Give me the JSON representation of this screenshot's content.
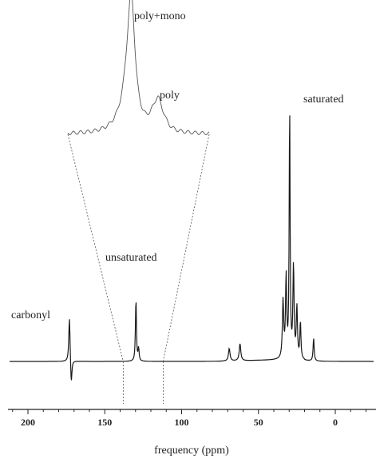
{
  "chart_data": {
    "type": "line",
    "xlabel": "frequency (ppm)",
    "x_ticks": [
      200,
      150,
      100,
      50,
      0
    ],
    "xlim": [
      210,
      -20
    ],
    "x_reversed": true,
    "grid": false,
    "annotations": {
      "carbonyl": "carbonyl",
      "unsaturated": "unsaturated",
      "saturated": "saturated",
      "poly_mono": "poly+mono",
      "poly": "poly"
    },
    "inset_range_ppm": [
      138,
      112
    ],
    "main_peaks": [
      {
        "ppm": 173.0,
        "height": 0.8,
        "width": 0.5
      },
      {
        "ppm": 171.8,
        "height": -0.45,
        "width": 0.5
      },
      {
        "ppm": 130.0,
        "height": 0.14,
        "width": 0.4
      },
      {
        "ppm": 129.7,
        "height": 1.0,
        "width": 0.35
      },
      {
        "ppm": 128.0,
        "height": 0.22,
        "width": 0.4
      },
      {
        "ppm": 69.0,
        "height": 0.22,
        "width": 0.6
      },
      {
        "ppm": 62.0,
        "height": 0.3,
        "width": 0.6
      },
      {
        "ppm": 34.0,
        "height": 1.0,
        "width": 0.5
      },
      {
        "ppm": 32.0,
        "height": 1.4,
        "width": 0.45
      },
      {
        "ppm": 29.7,
        "height": 4.4,
        "width": 0.35
      },
      {
        "ppm": 27.2,
        "height": 1.6,
        "width": 0.45
      },
      {
        "ppm": 25.0,
        "height": 0.9,
        "width": 0.45
      },
      {
        "ppm": 22.7,
        "height": 0.65,
        "width": 0.4
      },
      {
        "ppm": 14.1,
        "height": 0.4,
        "width": 0.4
      }
    ],
    "inset_peaks": [
      {
        "ppm": 130.0,
        "height": 0.05,
        "width": 0.6
      },
      {
        "ppm": 129.6,
        "height": 0.3,
        "width": 0.35
      },
      {
        "ppm": 129.4,
        "height": 1.0,
        "width": 0.25
      },
      {
        "ppm": 128.2,
        "height": 0.08,
        "width": 0.3
      },
      {
        "ppm": 127.9,
        "height": 0.22,
        "width": 0.25
      },
      {
        "ppm": 127.6,
        "height": 0.07,
        "width": 0.3
      }
    ]
  }
}
